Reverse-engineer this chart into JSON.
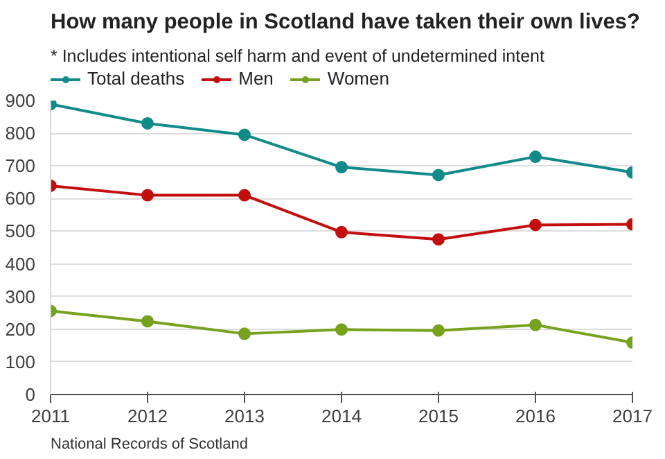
{
  "chart_data": {
    "type": "line",
    "title": "How many people in Scotland have taken their own lives?",
    "subtitle": "* Includes intentional self harm and event of undetermined intent",
    "x": [
      2011,
      2012,
      2013,
      2014,
      2015,
      2016,
      2017
    ],
    "xlim": [
      2011,
      2017
    ],
    "xticks": [
      2011,
      2012,
      2013,
      2014,
      2015,
      2016,
      2017
    ],
    "ylim": [
      0,
      900
    ],
    "yticks": [
      0,
      100,
      200,
      300,
      400,
      500,
      600,
      700,
      800,
      900
    ],
    "grid": "y",
    "legend": "top",
    "marker": "circle",
    "line_style": "solid",
    "series": [
      {
        "name": "Total deaths",
        "color": "#128a8a",
        "values": [
          889,
          830,
          795,
          696,
          672,
          728,
          680
        ]
      },
      {
        "name": "Men",
        "color": "#c20e0e",
        "values": [
          639,
          610,
          610,
          497,
          475,
          519,
          521
        ]
      },
      {
        "name": "Women",
        "color": "#76a21e",
        "values": [
          256,
          224,
          186,
          199,
          196,
          213,
          159
        ]
      }
    ],
    "annotations": [
      "National Records of Scotland"
    ]
  }
}
